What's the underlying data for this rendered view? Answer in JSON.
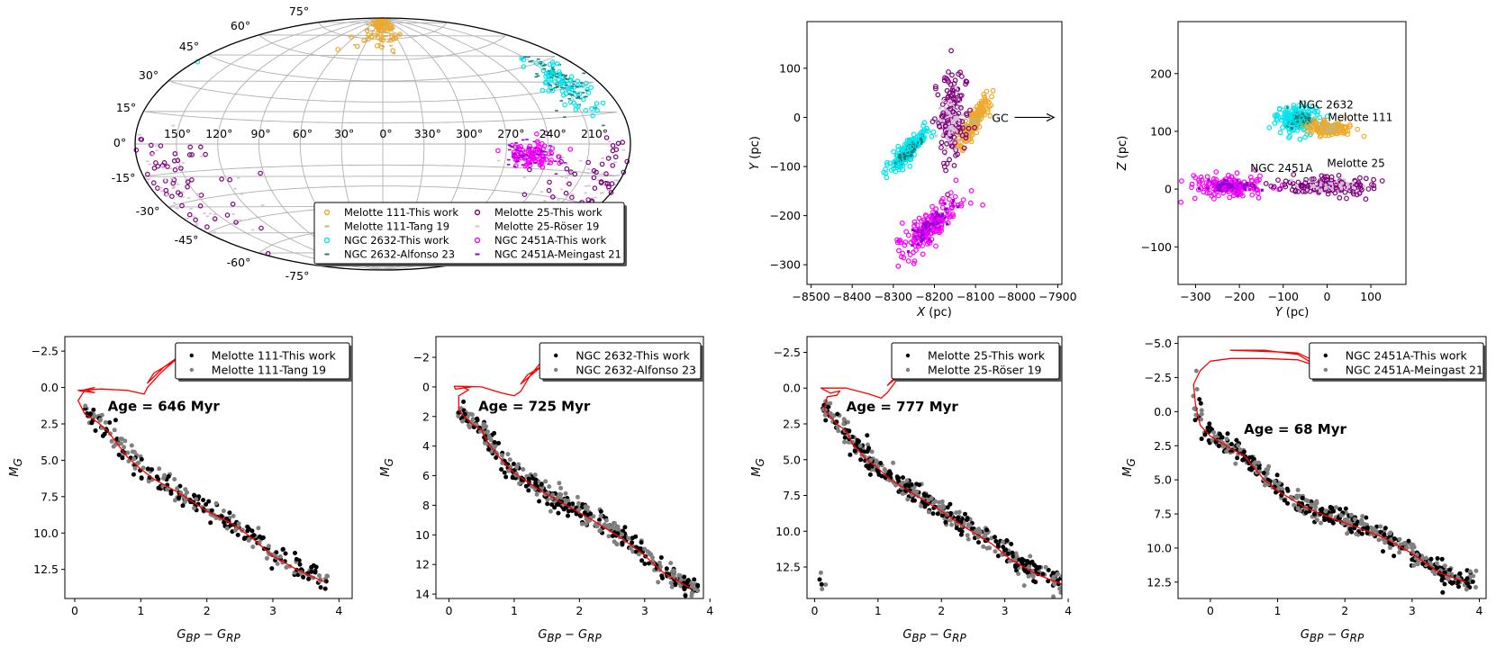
{
  "chart_data": [
    {
      "id": "skymap",
      "type": "scatter",
      "projection": "aitoff",
      "title": "",
      "grid": true,
      "lon_tick_labels": [
        "150°",
        "120°",
        "90°",
        "60°",
        "30°",
        "0°",
        "330°",
        "300°",
        "270°",
        "240°",
        "210°"
      ],
      "lat_tick_labels": [
        "75°",
        "60°",
        "45°",
        "30°",
        "15°",
        "0°",
        "-15°",
        "-30°",
        "-45°",
        "-60°",
        "-75°"
      ],
      "legend": {
        "placement": "lower-right",
        "entries": [
          {
            "label": "Melotte 111-This work",
            "color": "#f5a623",
            "marker": "open-circle"
          },
          {
            "label": "Melotte 111-Tang 19",
            "color": "#c8b46e",
            "marker": "dash"
          },
          {
            "label": "NGC 2632-This work",
            "color": "#00e5ee",
            "marker": "open-circle"
          },
          {
            "label": "NGC 2632-Alfonso 23",
            "color": "#1b7f7a",
            "marker": "dash"
          },
          {
            "label": "Melotte 25-This work",
            "color": "#800080",
            "marker": "open-circle"
          },
          {
            "label": "Melotte 25-Röser 19",
            "color": "#d8bfd8",
            "marker": "dash"
          },
          {
            "label": "NGC 2451A-This work",
            "color": "#ff00ff",
            "marker": "open-circle"
          },
          {
            "label": "NGC 2451A-Meingast 21",
            "color": "#9400d3",
            "marker": "dash"
          }
        ]
      },
      "clusters": [
        {
          "name": "Melotte 111",
          "lon_deg": 12,
          "lat_deg": 84,
          "spread_lon": 30,
          "spread_lat": 8,
          "colors": [
            "#f5a623",
            "#c8b46e"
          ]
        },
        {
          "name": "NGC 2632",
          "lon_deg": 206,
          "lat_deg": 33,
          "spread_lon": 8,
          "spread_lat": 7,
          "colors": [
            "#00e5ee",
            "#1b7f7a"
          ]
        },
        {
          "name": "NGC 2451A",
          "lon_deg": 252,
          "lat_deg": -7,
          "spread_lon": 10,
          "spread_lat": 4,
          "colors": [
            "#ff00ff",
            "#9400d3"
          ]
        },
        {
          "name": "Melotte 25",
          "lon_deg": 180,
          "lat_deg": -22,
          "spread_lon": 30,
          "spread_lat": 14,
          "colors": [
            "#800080",
            "#d8bfd8"
          ]
        }
      ]
    },
    {
      "id": "xy",
      "type": "scatter",
      "xlabel": "X (pc)",
      "ylabel": "Y (pc)",
      "xlim": [
        -8510,
        -7890
      ],
      "ylim": [
        -340,
        195
      ],
      "xticks": [
        -8500,
        -8400,
        -8300,
        -8200,
        -8100,
        -8000,
        -7900
      ],
      "yticks": [
        -300,
        -200,
        -100,
        0,
        100
      ],
      "xtick_labels": [
        "−8500",
        "−8400",
        "−8300",
        "−8200",
        "−8100",
        "−8000",
        "−7900"
      ],
      "ytick_labels": [
        "−300",
        "−200",
        "−100",
        "0",
        "100"
      ],
      "annotation": {
        "text": "GC",
        "x": -8040,
        "y": 0,
        "arrow_to_x": -7905
      },
      "clusters": [
        {
          "name": "Melotte 111",
          "cx": -8105,
          "cy": -10,
          "sx": 20,
          "sy": 30,
          "colors": [
            "#f5a623",
            "#c8b46e"
          ]
        },
        {
          "name": "NGC 2632",
          "cx": -8265,
          "cy": -70,
          "sx": 25,
          "sy": 25,
          "colors": [
            "#00e5ee",
            "#1b7f7a"
          ]
        },
        {
          "name": "Melotte 25",
          "cx": -8160,
          "cy": 0,
          "sx": 22,
          "sy": 50,
          "colors": [
            "#800080",
            "#d8bfd8"
          ]
        },
        {
          "name": "NGC 2451A",
          "cx": -8210,
          "cy": -220,
          "sx": 45,
          "sy": 40,
          "colors": [
            "#ff00ff",
            "#9400d3"
          ]
        }
      ]
    },
    {
      "id": "yz",
      "type": "scatter",
      "xlabel": "Y (pc)",
      "ylabel": "Z (pc)",
      "xlim": [
        -340,
        180
      ],
      "ylim": [
        -165,
        290
      ],
      "xticks": [
        -300,
        -200,
        -100,
        0,
        100
      ],
      "yticks": [
        -100,
        0,
        100,
        200
      ],
      "xtick_labels": [
        "−300",
        "−200",
        "−100",
        "0",
        "100"
      ],
      "ytick_labels": [
        "−100",
        "0",
        "100",
        "200"
      ],
      "labels": [
        {
          "text": "NGC 2632",
          "x": -65,
          "y": 140
        },
        {
          "text": "Melotte 111",
          "x": 2,
          "y": 118
        },
        {
          "text": "NGC 2451A",
          "x": -175,
          "y": 30
        },
        {
          "text": "Melotte 25",
          "x": 0,
          "y": 38
        }
      ],
      "clusters": [
        {
          "name": "NGC 2632",
          "cx": -65,
          "cy": 120,
          "sx": 25,
          "sy": 12,
          "colors": [
            "#00e5ee",
            "#1b7f7a"
          ]
        },
        {
          "name": "Melotte 111",
          "cx": 5,
          "cy": 105,
          "sx": 25,
          "sy": 6,
          "colors": [
            "#f5a623",
            "#c8b46e"
          ]
        },
        {
          "name": "NGC 2451A",
          "cx": -220,
          "cy": 5,
          "sx": 50,
          "sy": 10,
          "colors": [
            "#ff00ff",
            "#9400d3"
          ]
        },
        {
          "name": "Melotte 25",
          "cx": 0,
          "cy": 5,
          "sx": 60,
          "sy": 8,
          "colors": [
            "#800080",
            "#d8bfd8"
          ]
        }
      ]
    },
    {
      "id": "cmd1",
      "type": "scatter",
      "xlabel": "G_BP − G_RP",
      "ylabel": "M_G",
      "xlim": [
        -0.15,
        4.2
      ],
      "ylim": [
        14.5,
        -3.5
      ],
      "xticks": [
        0,
        1,
        2,
        3,
        4
      ],
      "yticks": [
        -2.5,
        0.0,
        2.5,
        5.0,
        7.5,
        10.0,
        12.5
      ],
      "xtick_labels": [
        "0",
        "1",
        "2",
        "3",
        "4"
      ],
      "ytick_labels": [
        "−2.5",
        "0.0",
        "2.5",
        "5.0",
        "7.5",
        "10.0",
        "12.5"
      ],
      "annotation": "Age = 646 Myr",
      "legend": {
        "placement": "top-right",
        "entries": [
          {
            "label": "Melotte 111-This work",
            "color": "#000000"
          },
          {
            "label": "Melotte 111-Tang 19",
            "color": "#808080"
          }
        ]
      },
      "isochrone": [
        [
          3.8,
          13.4
        ],
        [
          3.4,
          12.6
        ],
        [
          3.0,
          11.6
        ],
        [
          2.7,
          10.4
        ],
        [
          2.4,
          9.4
        ],
        [
          2.0,
          8.5
        ],
        [
          1.6,
          7.3
        ],
        [
          1.2,
          6.3
        ],
        [
          1.0,
          5.6
        ],
        [
          0.8,
          4.8
        ],
        [
          0.6,
          3.6
        ],
        [
          0.5,
          3.0
        ],
        [
          0.35,
          2.4
        ],
        [
          0.15,
          1.8
        ],
        [
          0.05,
          0.9
        ],
        [
          0.15,
          0.2
        ],
        [
          0.3,
          0.0
        ],
        [
          0.15,
          0.15
        ],
        [
          0.3,
          0.35
        ],
        [
          0.1,
          0.25
        ],
        [
          0.05,
          0.2
        ],
        [
          0.4,
          0.1
        ],
        [
          0.8,
          0.2
        ],
        [
          1.05,
          0.45
        ],
        [
          1.1,
          0.0
        ],
        [
          1.3,
          -1.0
        ],
        [
          1.5,
          -1.8
        ],
        [
          1.72,
          -2.6
        ],
        [
          1.35,
          -1.4
        ],
        [
          1.1,
          -0.3
        ],
        [
          1.2,
          -1.0
        ],
        [
          1.5,
          -1.8
        ]
      ],
      "ms": {
        "x0": 0.1,
        "x1": 3.9,
        "n": 140
      }
    },
    {
      "id": "cmd2",
      "type": "scatter",
      "xlabel": "G_BP − G_RP",
      "ylabel": "M_G",
      "xlim": [
        -0.2,
        3.9
      ],
      "ylim": [
        14.3,
        -3.4
      ],
      "xticks": [
        0,
        1,
        2,
        3,
        4
      ],
      "yticks": [
        -2,
        0,
        2,
        4,
        6,
        8,
        10,
        12,
        14
      ],
      "xtick_labels": [
        "0",
        "1",
        "2",
        "3",
        "4"
      ],
      "ytick_labels": [
        "−2",
        "0",
        "2",
        "4",
        "6",
        "8",
        "10",
        "12",
        "14"
      ],
      "annotation": "Age = 725 Myr",
      "legend": {
        "placement": "top-right",
        "entries": [
          {
            "label": "NGC 2632-This work",
            "color": "#000000"
          },
          {
            "label": "NGC 2632-Alfonso 23",
            "color": "#808080"
          }
        ]
      },
      "isochrone": [
        [
          3.7,
          13.6
        ],
        [
          3.3,
          12.6
        ],
        [
          2.95,
          11.2
        ],
        [
          2.6,
          10.1
        ],
        [
          2.2,
          9.0
        ],
        [
          1.8,
          8.0
        ],
        [
          1.4,
          7.0
        ],
        [
          1.0,
          5.8
        ],
        [
          0.8,
          4.9
        ],
        [
          0.6,
          3.8
        ],
        [
          0.5,
          2.9
        ],
        [
          0.35,
          2.5
        ],
        [
          0.15,
          1.6
        ],
        [
          0.15,
          0.6
        ],
        [
          0.3,
          0.2
        ],
        [
          0.22,
          0.05
        ],
        [
          0.35,
          0.0
        ],
        [
          0.1,
          0.15
        ],
        [
          0.08,
          -0.05
        ],
        [
          0.5,
          0.0
        ],
        [
          0.8,
          0.4
        ],
        [
          1.0,
          0.6
        ],
        [
          1.1,
          0.3
        ],
        [
          1.25,
          -0.8
        ],
        [
          1.4,
          -1.6
        ],
        [
          1.7,
          -2.4
        ],
        [
          1.45,
          -1.5
        ],
        [
          1.1,
          -0.2
        ],
        [
          1.2,
          -0.8
        ],
        [
          1.5,
          -1.6
        ]
      ],
      "ms": {
        "x0": 0.15,
        "x1": 3.8,
        "n": 220
      }
    },
    {
      "id": "cmd3",
      "type": "scatter",
      "xlabel": "G_BP − G_RP",
      "ylabel": "M_G",
      "xlim": [
        -0.12,
        3.9
      ],
      "ylim": [
        14.7,
        -3.6
      ],
      "xticks": [
        0,
        1,
        2,
        3,
        4
      ],
      "yticks": [
        -2.5,
        0.0,
        2.5,
        5.0,
        7.5,
        10.0,
        12.5
      ],
      "xtick_labels": [
        "0",
        "1",
        "2",
        "3",
        "4"
      ],
      "ytick_labels": [
        "−2.5",
        "0.0",
        "2.5",
        "5.0",
        "7.5",
        "10.0",
        "12.5"
      ],
      "annotation": "Age = 777 Myr",
      "legend": {
        "placement": "top-right",
        "entries": [
          {
            "label": "Melotte 25-This work",
            "color": "#000000"
          },
          {
            "label": "Melotte 25-Röser 19",
            "color": "#808080"
          }
        ]
      },
      "isochrone": [
        [
          3.9,
          13.7
        ],
        [
          3.5,
          13.0
        ],
        [
          3.1,
          12.0
        ],
        [
          2.8,
          10.9
        ],
        [
          2.4,
          9.8
        ],
        [
          2.0,
          8.6
        ],
        [
          1.6,
          7.5
        ],
        [
          1.2,
          6.4
        ],
        [
          1.0,
          5.6
        ],
        [
          0.8,
          4.9
        ],
        [
          0.6,
          3.9
        ],
        [
          0.5,
          3.0
        ],
        [
          0.35,
          2.5
        ],
        [
          0.15,
          1.5
        ],
        [
          0.2,
          0.6
        ],
        [
          0.35,
          0.5
        ],
        [
          0.4,
          0.2
        ],
        [
          0.25,
          0.35
        ],
        [
          0.1,
          0.0
        ],
        [
          0.5,
          0.0
        ],
        [
          0.85,
          0.4
        ],
        [
          1.05,
          0.7
        ],
        [
          1.15,
          0.3
        ],
        [
          1.3,
          -0.6
        ],
        [
          1.45,
          -1.2
        ],
        [
          1.7,
          -2.2
        ],
        [
          1.9,
          -2.6
        ],
        [
          1.75,
          -2.4
        ],
        [
          1.45,
          -1.3
        ],
        [
          1.15,
          -0.2
        ],
        [
          1.3,
          -0.9
        ],
        [
          1.6,
          -1.7
        ]
      ],
      "ms": {
        "x0": 0.1,
        "x1": 3.95,
        "n": 220
      }
    },
    {
      "id": "cmd4",
      "type": "scatter",
      "xlabel": "G_BP − G_RP",
      "ylabel": "M_G",
      "xlim": [
        -0.48,
        4.1
      ],
      "ylim": [
        13.7,
        -5.5
      ],
      "xticks": [
        0,
        1,
        2,
        3,
        4
      ],
      "yticks": [
        -5.0,
        -2.5,
        0.0,
        2.5,
        5.0,
        7.5,
        10.0,
        12.5
      ],
      "xtick_labels": [
        "0",
        "1",
        "2",
        "3",
        "4"
      ],
      "ytick_labels": [
        "−5.0",
        "−2.5",
        "0.0",
        "2.5",
        "5.0",
        "7.5",
        "10.0",
        "12.5"
      ],
      "annotation": "Age = 68 Myr",
      "legend": {
        "placement": "top-right",
        "entries": [
          {
            "label": "NGC 2451A-This work",
            "color": "#000000"
          },
          {
            "label": "NGC 2451A-Meingast 21",
            "color": "#808080"
          }
        ]
      },
      "isochrone": [
        [
          3.8,
          12.5
        ],
        [
          3.4,
          11.8
        ],
        [
          3.0,
          10.4
        ],
        [
          2.6,
          9.3
        ],
        [
          2.2,
          8.5
        ],
        [
          1.8,
          7.8
        ],
        [
          1.4,
          7.0
        ],
        [
          1.0,
          5.8
        ],
        [
          0.8,
          5.0
        ],
        [
          0.6,
          3.8
        ],
        [
          0.5,
          3.2
        ],
        [
          0.3,
          2.7
        ],
        [
          0.0,
          1.8
        ],
        [
          -0.15,
          1.0
        ],
        [
          -0.22,
          -0.5
        ],
        [
          -0.25,
          -2.0
        ],
        [
          -0.15,
          -3.0
        ],
        [
          0.0,
          -3.7
        ],
        [
          0.3,
          -3.9
        ],
        [
          0.8,
          -3.9
        ],
        [
          1.3,
          -3.8
        ],
        [
          1.6,
          -3.3
        ],
        [
          1.3,
          -4.2
        ],
        [
          0.8,
          -4.5
        ],
        [
          0.3,
          -4.5
        ],
        [
          0.9,
          -4.4
        ],
        [
          1.3,
          -4.3
        ],
        [
          1.6,
          -3.6
        ]
      ],
      "ms": {
        "x0": -0.25,
        "x1": 3.9,
        "n": 260
      }
    }
  ]
}
